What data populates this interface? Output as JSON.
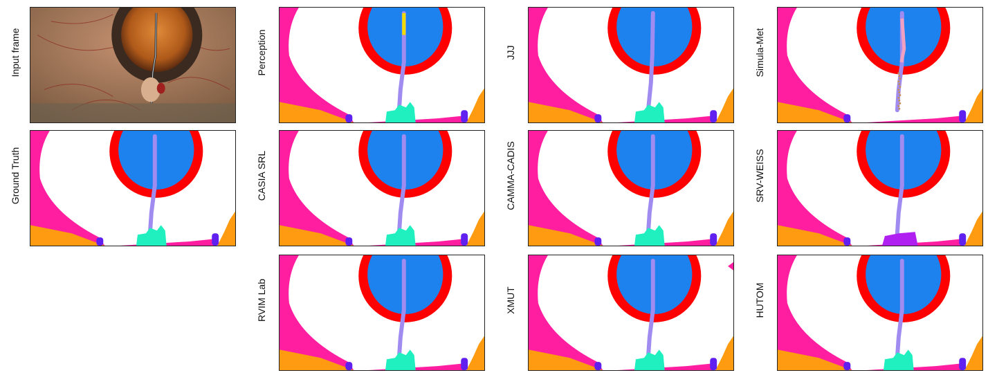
{
  "panels": [
    {
      "id": "input",
      "label": "Input frame",
      "kind": "photo"
    },
    {
      "id": "gt",
      "label": "Ground Truth",
      "kind": "seg",
      "variant": "gt"
    },
    {
      "id": "perception",
      "label": "Perception",
      "kind": "seg",
      "variant": "perception"
    },
    {
      "id": "casia",
      "label": "CASIA SRL",
      "kind": "seg",
      "variant": "standard"
    },
    {
      "id": "rvim",
      "label": "RVIM Lab",
      "kind": "seg",
      "variant": "standard"
    },
    {
      "id": "jjj",
      "label": "JJJ",
      "kind": "seg",
      "variant": "jjj"
    },
    {
      "id": "camma",
      "label": "CAMMA-CADIS",
      "kind": "seg",
      "variant": "standard"
    },
    {
      "id": "xmut",
      "label": "XMUT",
      "kind": "seg",
      "variant": "xmut"
    },
    {
      "id": "simula",
      "label": "Simula-Met",
      "kind": "seg",
      "variant": "simula"
    },
    {
      "id": "srv",
      "label": "SRV-WEISS",
      "kind": "seg",
      "variant": "srv"
    },
    {
      "id": "hutom",
      "label": "HUTOM",
      "kind": "seg",
      "variant": "standard"
    }
  ],
  "colors": {
    "pupil": "#1e82ee",
    "iris_ring": "#ff0000",
    "instrument_shaft": "#a08cf0",
    "instrument_tip_yellow": "#f0dc00",
    "skin": "#ff1ea0",
    "retractor_orange": "#ff9b10",
    "hand_cyan": "#20f0c0",
    "retractor_tip": "#6020f0",
    "tool_purple": "#b020f0",
    "sclera": "#ffffff"
  }
}
